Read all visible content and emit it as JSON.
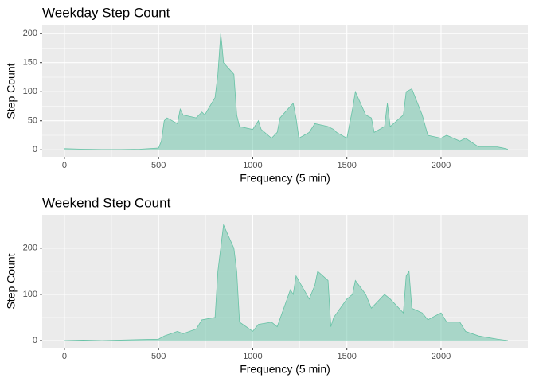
{
  "chart_data": [
    {
      "type": "area",
      "title": "Weekday Step Count",
      "xlabel": "Frequency (5 min)",
      "ylabel": "Step Count",
      "color": "#66c2a5",
      "grid": true,
      "x": [
        0,
        100,
        200,
        300,
        400,
        450,
        500,
        515,
        530,
        545,
        600,
        615,
        630,
        700,
        730,
        745,
        800,
        815,
        830,
        835,
        845,
        900,
        915,
        930,
        1000,
        1030,
        1045,
        1100,
        1130,
        1145,
        1200,
        1215,
        1230,
        1245,
        1300,
        1330,
        1400,
        1430,
        1445,
        1500,
        1530,
        1545,
        1600,
        1630,
        1645,
        1700,
        1715,
        1730,
        1800,
        1815,
        1845,
        1900,
        1930,
        2000,
        2030,
        2100,
        2130,
        2200,
        2300,
        2330,
        2355
      ],
      "values": [
        2,
        1,
        0.5,
        0.5,
        1,
        2,
        3,
        15,
        50,
        55,
        45,
        70,
        60,
        55,
        65,
        60,
        90,
        130,
        200,
        185,
        150,
        130,
        60,
        40,
        35,
        50,
        35,
        20,
        30,
        55,
        75,
        80,
        55,
        20,
        30,
        45,
        40,
        35,
        30,
        20,
        70,
        100,
        60,
        55,
        30,
        40,
        80,
        40,
        60,
        100,
        105,
        60,
        25,
        20,
        25,
        15,
        20,
        5,
        5,
        3,
        1
      ],
      "xlim": [
        -118,
        2461
      ],
      "ylim": [
        -12,
        214
      ],
      "xticks": [
        0,
        500,
        1000,
        1500,
        2000
      ],
      "yticks": [
        0,
        50,
        100,
        150,
        200
      ]
    },
    {
      "type": "area",
      "title": "Weekend Step Count",
      "xlabel": "Frequency (5 min)",
      "ylabel": "Step Count",
      "color": "#66c2a5",
      "grid": true,
      "x": [
        0,
        100,
        200,
        300,
        400,
        500,
        530,
        600,
        630,
        700,
        730,
        800,
        815,
        830,
        845,
        900,
        915,
        930,
        1000,
        1030,
        1100,
        1130,
        1200,
        1215,
        1230,
        1300,
        1330,
        1345,
        1400,
        1415,
        1430,
        1500,
        1530,
        1545,
        1600,
        1630,
        1700,
        1730,
        1800,
        1815,
        1830,
        1845,
        1900,
        1930,
        2000,
        2030,
        2100,
        2130,
        2200,
        2300,
        2355
      ],
      "values": [
        0,
        1,
        0,
        1,
        2,
        3,
        10,
        20,
        15,
        25,
        45,
        50,
        150,
        200,
        250,
        200,
        150,
        40,
        20,
        35,
        40,
        30,
        110,
        100,
        140,
        90,
        120,
        150,
        130,
        30,
        50,
        90,
        100,
        130,
        100,
        70,
        100,
        90,
        60,
        140,
        150,
        70,
        60,
        45,
        60,
        40,
        40,
        20,
        10,
        3,
        0
      ],
      "xlim": [
        -118,
        2461
      ],
      "ylim": [
        -15.5,
        272
      ],
      "xticks": [
        0,
        500,
        1000,
        1500,
        2000
      ],
      "yticks": [
        0,
        100,
        200
      ]
    }
  ]
}
